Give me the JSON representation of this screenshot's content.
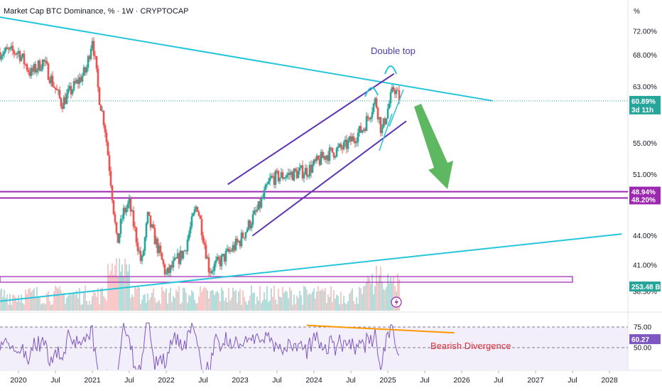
{
  "header": {
    "title": "Market Cap BTC Dominance, % · 1W · CRYPTOCAP",
    "unit": "%"
  },
  "colors": {
    "up": "#26a69a",
    "down": "#ef5350",
    "trendline": "#26c6da",
    "channel": "#5e35b1",
    "zone": "#9c27b0",
    "arrow": "#4caf50",
    "rsi_line": "#7e57c2",
    "divergence": "#ff9800",
    "price_badge": "#26a69a",
    "zone_badge": "#9c27b0",
    "volume_badge": "#26a69a"
  },
  "chart_data": {
    "type": "candlestick",
    "symbol": "CRYPTOCAP",
    "interval": "1W",
    "y_axis": {
      "ticks": [
        "72.00%",
        "68.00%",
        "63.00%",
        "55.00%",
        "51.00%",
        "44.00%",
        "41.00%",
        "38.50%"
      ],
      "scale": "log"
    },
    "x_axis": {
      "ticks": [
        "2020",
        "Jul",
        "2021",
        "Jul",
        "2022",
        "Jul",
        "2023",
        "Jul",
        "2024",
        "Jul",
        "2025",
        "Jul",
        "2026",
        "Jul",
        "2027",
        "Jul",
        "2028"
      ]
    },
    "price_path": [
      {
        "t": "2019-10",
        "v": 68.5
      },
      {
        "t": "2020-01",
        "v": 68.5
      },
      {
        "t": "2020-03",
        "v": 65.0
      },
      {
        "t": "2020-05",
        "v": 67.0
      },
      {
        "t": "2020-08",
        "v": 60.5
      },
      {
        "t": "2020-10",
        "v": 63.0
      },
      {
        "t": "2020-12",
        "v": 65.5
      },
      {
        "t": "2021-01",
        "v": 71.0
      },
      {
        "t": "2021-02",
        "v": 62.0
      },
      {
        "t": "2021-03",
        "v": 57.5
      },
      {
        "t": "2021-05",
        "v": 43.0
      },
      {
        "t": "2021-06",
        "v": 46.5
      },
      {
        "t": "2021-07",
        "v": 47.5
      },
      {
        "t": "2021-09",
        "v": 41.0
      },
      {
        "t": "2021-10",
        "v": 46.0
      },
      {
        "t": "2022-01",
        "v": 40.0
      },
      {
        "t": "2022-04",
        "v": 42.5
      },
      {
        "t": "2022-06",
        "v": 47.5
      },
      {
        "t": "2022-08",
        "v": 40.5
      },
      {
        "t": "2022-10",
        "v": 41.5
      },
      {
        "t": "2023-01",
        "v": 43.5
      },
      {
        "t": "2023-04",
        "v": 47.0
      },
      {
        "t": "2023-06",
        "v": 50.5
      },
      {
        "t": "2023-09",
        "v": 51.0
      },
      {
        "t": "2023-12",
        "v": 51.5
      },
      {
        "t": "2024-03",
        "v": 53.5
      },
      {
        "t": "2024-06",
        "v": 54.5
      },
      {
        "t": "2024-09",
        "v": 57.0
      },
      {
        "t": "2024-11",
        "v": 61.0
      },
      {
        "t": "2024-12",
        "v": 56.5
      },
      {
        "t": "2025-02",
        "v": 63.0
      },
      {
        "t": "2025-03",
        "v": 60.89
      }
    ],
    "last": {
      "value_label": "60.89%",
      "countdown": "3d 11h"
    },
    "zones": [
      {
        "label": "48.94%",
        "value": 48.94
      },
      {
        "label": "48.20%",
        "value": 48.2
      }
    ],
    "volume_label": "253.48 B",
    "trendlines": [
      {
        "name": "descending resistance",
        "from": {
          "t": "2019-10",
          "v": 74.5
        },
        "to": {
          "t": "2026-06",
          "v": 60.9
        }
      },
      {
        "name": "ascending support",
        "from": {
          "t": "2019-10",
          "v": 37.6
        },
        "to": {
          "t": "2028-03",
          "v": 44.2
        }
      }
    ],
    "channel": {
      "upper": {
        "from": {
          "t": "2022-11",
          "v": 49.8
        },
        "to": {
          "t": "2025-02",
          "v": 65.0
        }
      },
      "lower": {
        "from": {
          "t": "2023-03",
          "v": 44.0
        },
        "to": {
          "t": "2025-04",
          "v": 58.0
        }
      }
    },
    "annotations": [
      "Double top",
      "Bearish Divergence"
    ],
    "rsi": {
      "levels": [
        "75.00",
        "50.00"
      ],
      "last_label": "60.27"
    }
  }
}
